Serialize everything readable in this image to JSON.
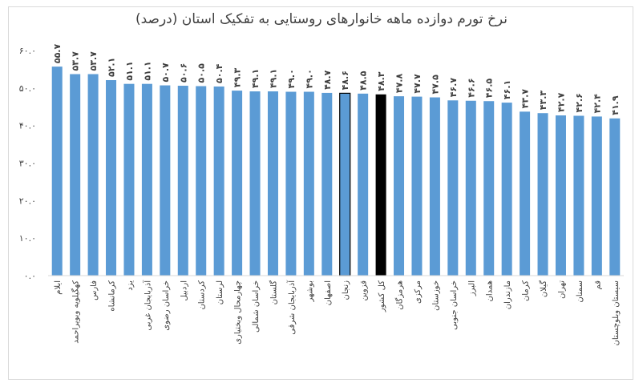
{
  "chart_data": {
    "type": "bar",
    "title": "نرخ تورم دوازده ماهه خانوارهای روستایی به تفکیک استان (درصد)",
    "xlabel": "",
    "ylabel": "",
    "ylim": [
      0,
      60
    ],
    "yticks": [
      0,
      10,
      20,
      30,
      40,
      50,
      60
    ],
    "ytick_labels": [
      "۰.۰",
      "۱۰.۰",
      "۲۰.۰",
      "۳۰.۰",
      "۴۰.۰",
      "۵۰.۰",
      "۶۰.۰"
    ],
    "grid": false,
    "legend": "none",
    "categories": [
      "ایلام",
      "کهگیلویه وبویراحمد",
      "فارس",
      "کرمانشاه",
      "یزد",
      "آذربایجان غربی",
      "خراسان رضوی",
      "اردبیل",
      "کردستان",
      "لرستان",
      "چهارمحال وبختیاری",
      "خراسان شمالی",
      "گلستان",
      "آذربایجان شرقی",
      "بوشهر",
      "اصفهان",
      "زنجان",
      "قزوین",
      "کل کشور",
      "هرمزگان",
      "مرکزی",
      "خوزستان",
      "خراسان جنوبی",
      "البرز",
      "همدان",
      "مازندران",
      "کرمان",
      "گیلان",
      "تهران",
      "سمنان",
      "قم",
      "سیستان وبلوچستان"
    ],
    "values": [
      55.7,
      53.7,
      53.7,
      52.1,
      51.1,
      51.1,
      50.7,
      50.6,
      50.5,
      50.4,
      49.3,
      49.1,
      49.1,
      49.0,
      49.0,
      48.7,
      48.6,
      48.5,
      48.3,
      47.8,
      47.7,
      47.5,
      46.7,
      46.6,
      46.5,
      46.1,
      43.7,
      43.3,
      42.7,
      42.6,
      42.4,
      41.9
    ],
    "value_labels": [
      "۵۵.۷",
      "۵۳.۷",
      "۵۳.۷",
      "۵۲.۱",
      "۵۱.۱",
      "۵۱.۱",
      "۵۰.۷",
      "۵۰.۶",
      "۵۰.۵",
      "۵۰.۴",
      "۴۹.۳",
      "۴۹.۱",
      "۴۹.۱",
      "۴۹.۰",
      "۴۹.۰",
      "۴۸.۷",
      "۴۸.۶",
      "۴۸.۵",
      "۴۸.۳",
      "۴۷.۸",
      "۴۷.۷",
      "۴۷.۵",
      "۴۶.۷",
      "۴۶.۶",
      "۴۶.۵",
      "۴۶.۱",
      "۴۳.۷",
      "۴۳.۳",
      "۴۲.۷",
      "۴۲.۶",
      "۴۲.۴",
      "۴۱.۹"
    ],
    "colors": {
      "bar": "#5b9bd5",
      "highlight_outline": "#000000",
      "national": "#000000",
      "text": "#404040",
      "axis": "#d9d9d9"
    },
    "styles": [
      "normal",
      "normal",
      "normal",
      "normal",
      "normal",
      "normal",
      "normal",
      "normal",
      "normal",
      "normal",
      "normal",
      "normal",
      "normal",
      "normal",
      "normal",
      "normal",
      "outlined",
      "normal",
      "national",
      "normal",
      "normal",
      "normal",
      "normal",
      "normal",
      "normal",
      "normal",
      "normal",
      "normal",
      "normal",
      "normal",
      "normal",
      "normal"
    ]
  }
}
